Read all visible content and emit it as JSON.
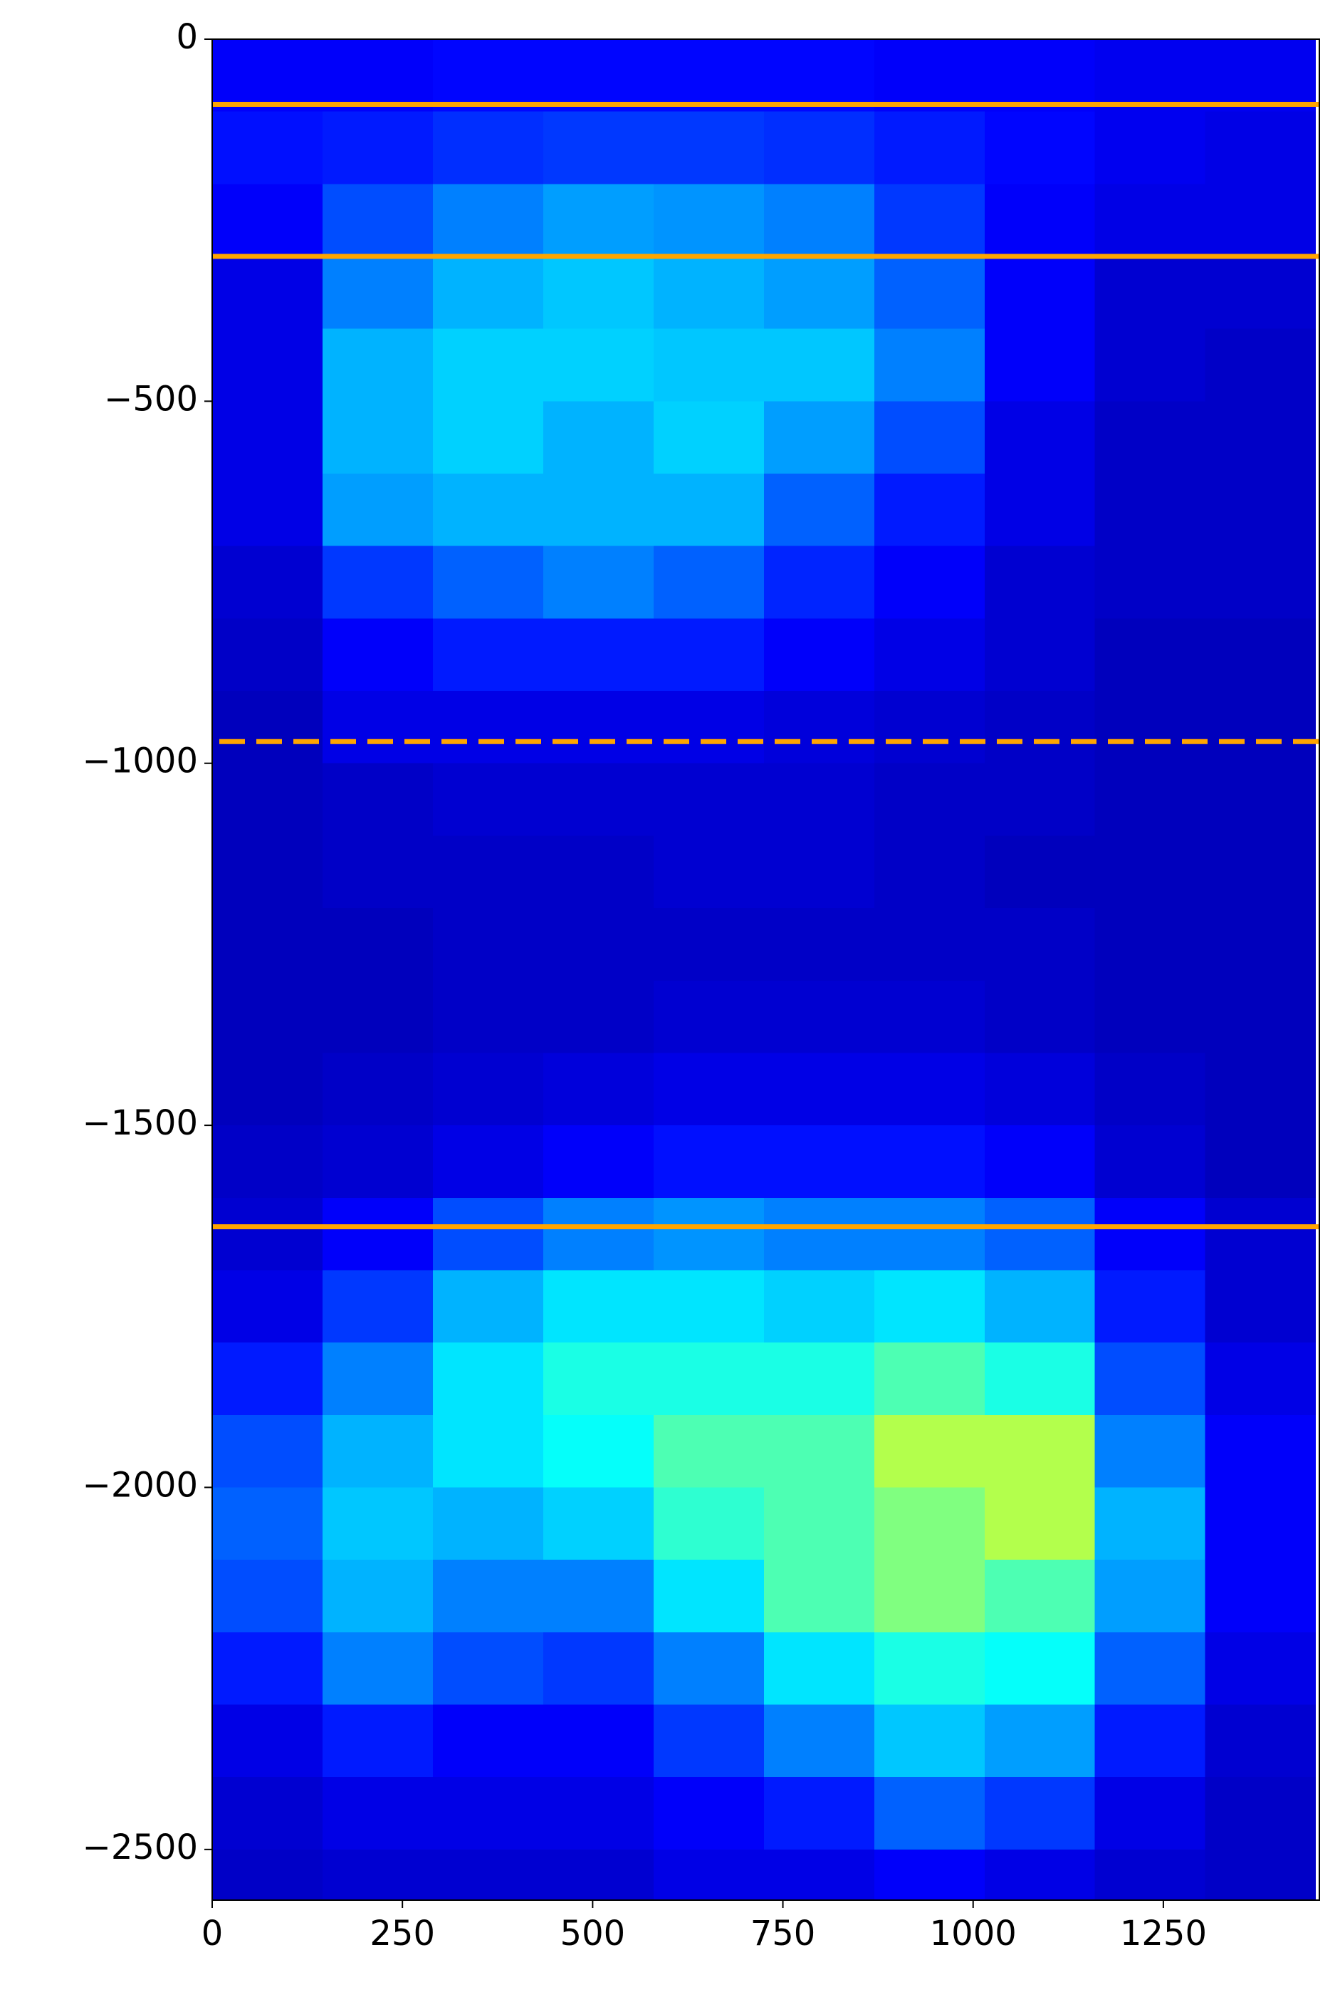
{
  "chart_data": {
    "type": "heatmap",
    "colormap": "jet",
    "xlim": [
      0,
      1455
    ],
    "ylim": [
      -2570,
      0
    ],
    "xticks": [
      0,
      250,
      500,
      750,
      1000,
      1250
    ],
    "yticks": [
      0,
      {
        "value": -500,
        "label": "−500"
      },
      {
        "value": -1000,
        "label": "−1000"
      },
      {
        "value": -1500,
        "label": "−1500"
      },
      {
        "value": -2000,
        "label": "−2000"
      },
      {
        "value": -2500,
        "label": "−2500"
      }
    ],
    "x_edges": [
      0,
      145,
      290,
      435,
      580,
      725,
      870,
      1015,
      1160,
      1305,
      1450
    ],
    "y_edges": [
      0,
      -100,
      -200,
      -300,
      -400,
      -500,
      -600,
      -700,
      -800,
      -900,
      -1000,
      -1100,
      -1200,
      -1300,
      -1400,
      -1500,
      -1600,
      -1700,
      -1800,
      -1900,
      -2000,
      -2100,
      -2200,
      -2300,
      -2400,
      -2500,
      -2600
    ],
    "z": [
      [
        0.12,
        0.12,
        0.13,
        0.13,
        0.13,
        0.13,
        0.12,
        0.12,
        0.11,
        0.11
      ],
      [
        0.14,
        0.15,
        0.17,
        0.18,
        0.18,
        0.17,
        0.15,
        0.13,
        0.11,
        0.1
      ],
      [
        0.12,
        0.2,
        0.25,
        0.28,
        0.27,
        0.25,
        0.18,
        0.12,
        0.1,
        0.1
      ],
      [
        0.1,
        0.25,
        0.3,
        0.32,
        0.3,
        0.28,
        0.22,
        0.12,
        0.08,
        0.08
      ],
      [
        0.1,
        0.3,
        0.33,
        0.33,
        0.32,
        0.32,
        0.25,
        0.12,
        0.08,
        0.07
      ],
      [
        0.1,
        0.3,
        0.33,
        0.3,
        0.33,
        0.28,
        0.2,
        0.1,
        0.07,
        0.07
      ],
      [
        0.1,
        0.28,
        0.3,
        0.3,
        0.3,
        0.22,
        0.15,
        0.1,
        0.07,
        0.07
      ],
      [
        0.08,
        0.18,
        0.22,
        0.25,
        0.22,
        0.16,
        0.12,
        0.08,
        0.07,
        0.07
      ],
      [
        0.07,
        0.12,
        0.15,
        0.15,
        0.15,
        0.12,
        0.1,
        0.08,
        0.06,
        0.06
      ],
      [
        0.06,
        0.1,
        0.1,
        0.1,
        0.1,
        0.09,
        0.08,
        0.07,
        0.06,
        0.06
      ],
      [
        0.06,
        0.07,
        0.08,
        0.08,
        0.08,
        0.08,
        0.07,
        0.07,
        0.06,
        0.06
      ],
      [
        0.06,
        0.07,
        0.07,
        0.07,
        0.08,
        0.08,
        0.07,
        0.06,
        0.06,
        0.06
      ],
      [
        0.06,
        0.06,
        0.07,
        0.07,
        0.07,
        0.07,
        0.07,
        0.07,
        0.06,
        0.06
      ],
      [
        0.06,
        0.06,
        0.07,
        0.07,
        0.08,
        0.08,
        0.08,
        0.07,
        0.06,
        0.06
      ],
      [
        0.06,
        0.07,
        0.08,
        0.09,
        0.1,
        0.1,
        0.1,
        0.09,
        0.07,
        0.06
      ],
      [
        0.07,
        0.08,
        0.1,
        0.12,
        0.14,
        0.14,
        0.14,
        0.12,
        0.08,
        0.06
      ],
      [
        0.08,
        0.12,
        0.2,
        0.25,
        0.27,
        0.25,
        0.25,
        0.22,
        0.12,
        0.08
      ],
      [
        0.1,
        0.18,
        0.3,
        0.35,
        0.35,
        0.33,
        0.35,
        0.3,
        0.15,
        0.08
      ],
      [
        0.15,
        0.25,
        0.35,
        0.4,
        0.4,
        0.4,
        0.45,
        0.4,
        0.2,
        0.1
      ],
      [
        0.2,
        0.3,
        0.35,
        0.38,
        0.45,
        0.45,
        0.55,
        0.55,
        0.25,
        0.12
      ],
      [
        0.22,
        0.32,
        0.3,
        0.33,
        0.42,
        0.45,
        0.5,
        0.55,
        0.3,
        0.12
      ],
      [
        0.2,
        0.3,
        0.25,
        0.25,
        0.35,
        0.45,
        0.5,
        0.45,
        0.28,
        0.12
      ],
      [
        0.15,
        0.25,
        0.2,
        0.18,
        0.25,
        0.35,
        0.4,
        0.38,
        0.22,
        0.1
      ],
      [
        0.1,
        0.15,
        0.12,
        0.12,
        0.18,
        0.25,
        0.32,
        0.28,
        0.15,
        0.08
      ],
      [
        0.08,
        0.1,
        0.1,
        0.1,
        0.12,
        0.15,
        0.22,
        0.18,
        0.1,
        0.07
      ],
      [
        0.07,
        0.08,
        0.08,
        0.08,
        0.1,
        0.1,
        0.12,
        0.1,
        0.08,
        0.07
      ]
    ],
    "hlines": [
      {
        "y": -90,
        "color": "#ffa500",
        "style": "solid"
      },
      {
        "y": -300,
        "color": "#ffa500",
        "style": "solid"
      },
      {
        "y": -970,
        "color": "#ffa500",
        "style": "dashed"
      },
      {
        "y": -1640,
        "color": "#ffa500",
        "style": "solid"
      }
    ]
  }
}
